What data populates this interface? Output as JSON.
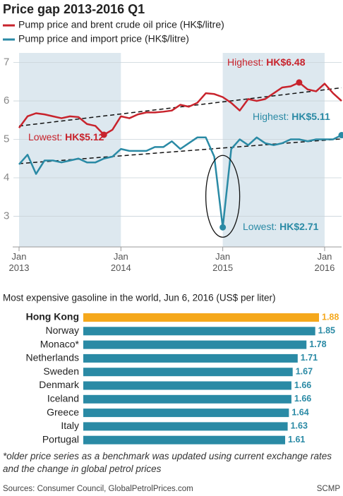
{
  "chart_data": [
    {
      "type": "line",
      "title": "Price gap 2013-2016 Q1",
      "x": [
        "2013-01",
        "2013-02",
        "2013-03",
        "2013-04",
        "2013-05",
        "2013-06",
        "2013-07",
        "2013-08",
        "2013-09",
        "2013-10",
        "2013-11",
        "2013-12",
        "2014-01",
        "2014-02",
        "2014-03",
        "2014-04",
        "2014-05",
        "2014-06",
        "2014-07",
        "2014-08",
        "2014-09",
        "2014-10",
        "2014-11",
        "2014-12",
        "2015-01",
        "2015-02",
        "2015-03",
        "2015-04",
        "2015-05",
        "2015-06",
        "2015-07",
        "2015-08",
        "2015-09",
        "2015-10",
        "2015-11",
        "2015-12",
        "2016-01",
        "2016-02",
        "2016-03"
      ],
      "series": [
        {
          "name": "Pump price and brent crude oil price (HK$/litre)",
          "color": "#c8232c",
          "values": [
            5.3,
            5.6,
            5.68,
            5.65,
            5.6,
            5.55,
            5.6,
            5.58,
            5.4,
            5.35,
            5.12,
            5.25,
            5.6,
            5.55,
            5.65,
            5.7,
            5.7,
            5.72,
            5.75,
            5.9,
            5.85,
            5.95,
            6.2,
            6.18,
            6.1,
            5.95,
            5.75,
            6.05,
            6.0,
            6.05,
            6.2,
            6.35,
            6.38,
            6.48,
            6.3,
            6.25,
            6.45,
            6.2,
            6.0
          ]
        },
        {
          "name": "Pump price and import price (HK$/litre)",
          "color": "#2a8aa5",
          "values": [
            4.35,
            4.6,
            4.1,
            4.45,
            4.45,
            4.4,
            4.45,
            4.5,
            4.4,
            4.4,
            4.5,
            4.55,
            4.75,
            4.7,
            4.7,
            4.7,
            4.8,
            4.8,
            4.95,
            4.75,
            4.9,
            5.05,
            5.05,
            4.55,
            2.71,
            4.75,
            5.0,
            4.85,
            5.05,
            4.9,
            4.85,
            4.9,
            5.0,
            5.0,
            4.95,
            5.0,
            5.0,
            5.0,
            5.11
          ]
        }
      ],
      "annotations": [
        "Highest: HK$6.48",
        "Lowest: HK$5.12",
        "Highest: HK$5.11",
        "Lowest: HK$2.71"
      ],
      "xlim": [
        "2013-01",
        "2016-03"
      ],
      "xticks": [
        {
          "value": "2013-01",
          "label": "Jan 2013"
        },
        {
          "value": "2014-01",
          "label": "Jan 2014"
        },
        {
          "value": "2015-01",
          "label": "Jan 2015"
        },
        {
          "value": "2016-01",
          "label": "Jan 2016"
        }
      ],
      "ylim": [
        2.2,
        7.25
      ],
      "yticks": [
        3,
        4,
        5,
        6,
        7
      ],
      "grid": true
    },
    {
      "type": "hbar",
      "title": "Most expensive gasoline in the world, Jun 6, 2016 (US$ per liter)",
      "categories": [
        "Hong Kong",
        "Norway",
        "Monaco*",
        "Netherlands",
        "Sweden",
        "Denmark",
        "Iceland",
        "Greece",
        "Italy",
        "Portugal"
      ],
      "values": [
        1.88,
        1.85,
        1.78,
        1.71,
        1.67,
        1.66,
        1.66,
        1.64,
        1.63,
        1.61
      ],
      "colors": [
        "#f5a81c",
        "#2a8aa5",
        "#2a8aa5",
        "#2a8aa5",
        "#2a8aa5",
        "#2a8aa5",
        "#2a8aa5",
        "#2a8aa5",
        "#2a8aa5",
        "#2a8aa5"
      ]
    }
  ],
  "footnote": "*older price series as a benchmark was updated using current exchange rates and the change in global petrol prices",
  "source": "Sources: Consumer Council, GlobalPetrolPrices.com",
  "credit": "SCMP"
}
